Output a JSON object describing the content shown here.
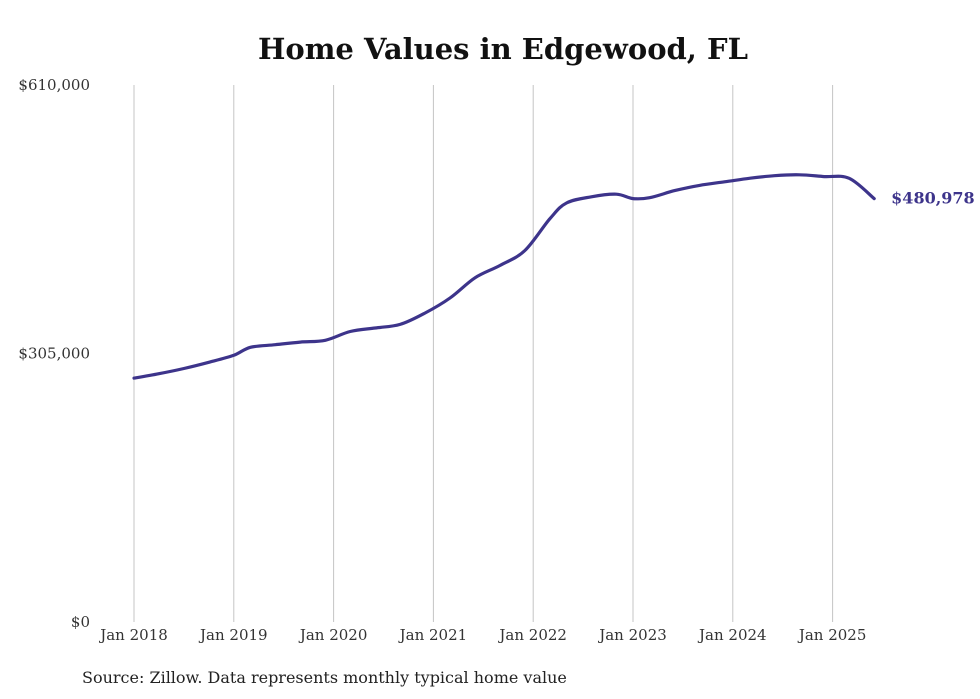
{
  "chart_data": {
    "type": "line",
    "title": "Home Values in Edgewood, FL",
    "xlabel": "",
    "ylabel": "",
    "ylim": [
      0,
      610000
    ],
    "xlim": [
      "2018-01",
      "2025-06"
    ],
    "grid": "vertical",
    "legend": "none",
    "y_ticks": [
      "$0",
      "$305,000",
      "$610,000"
    ],
    "y_tick_values": [
      0,
      305000,
      610000
    ],
    "x_ticks": [
      "Jan 2018",
      "Jan 2019",
      "Jan 2020",
      "Jan 2021",
      "Jan 2022",
      "Jan 2023",
      "Jan 2024",
      "Jan 2025"
    ],
    "x_tick_values": [
      "2018-01",
      "2019-01",
      "2020-01",
      "2021-01",
      "2022-01",
      "2023-01",
      "2024-01",
      "2025-01"
    ],
    "line_color": "#3d348b",
    "end_label": "$480,978",
    "series": [
      {
        "x": [
          "2018-01",
          "2018-04",
          "2018-07",
          "2018-10",
          "2019-01",
          "2019-03",
          "2019-06",
          "2019-09",
          "2019-12",
          "2020-03",
          "2020-06",
          "2020-09",
          "2020-12",
          "2021-03",
          "2021-06",
          "2021-09",
          "2021-12",
          "2022-03",
          "2022-05",
          "2022-08",
          "2022-11",
          "2023-01",
          "2023-03",
          "2023-06",
          "2023-09",
          "2023-12",
          "2024-03",
          "2024-06",
          "2024-09",
          "2024-12",
          "2025-03",
          "2025-06"
        ],
        "y": [
          277000,
          282000,
          288000,
          295000,
          303000,
          312000,
          315000,
          318000,
          320000,
          330000,
          334000,
          338000,
          351000,
          368000,
          391000,
          405000,
          422000,
          458000,
          476000,
          483000,
          486000,
          481000,
          482000,
          490000,
          496000,
          500000,
          504000,
          507000,
          508000,
          506000,
          504000,
          480978
        ]
      }
    ]
  },
  "source_text": "Source: Zillow. Data represents monthly typical home value"
}
